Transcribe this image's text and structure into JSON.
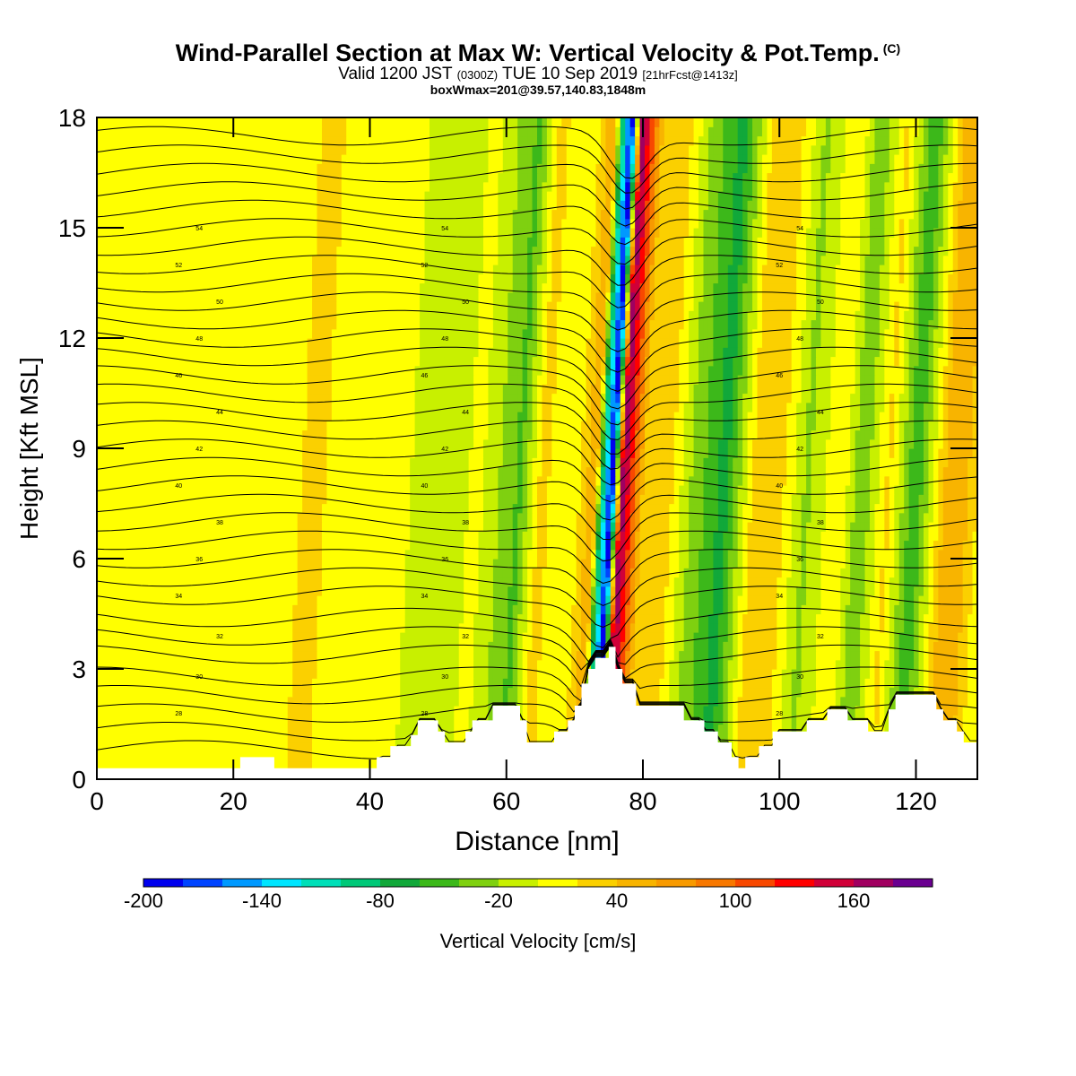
{
  "title": {
    "main": "Wind-Parallel Section at Max W: Vertical Velocity & Pot.Temp.",
    "copyright": "(C)",
    "valid_prefix": "Valid 1200 JST",
    "valid_utc": "(0300Z)",
    "valid_date": "TUE 10 Sep 2019",
    "forecast": "[21hrFcst@1413z]",
    "box_info": "boxWmax=201@39.57,140.83,1848m"
  },
  "chart_data": {
    "type": "heatmap",
    "xlabel": "Distance [nm]",
    "ylabel": "Height [Kft MSL]",
    "xlim": [
      0,
      129
    ],
    "ylim": [
      0,
      18
    ],
    "xticks": [
      0,
      20,
      40,
      60,
      80,
      100,
      120
    ],
    "yticks": [
      0,
      3,
      6,
      9,
      12,
      15,
      18
    ],
    "colorbar": {
      "label": "Vertical Velocity [cm/s]",
      "tick_labels": [
        "-200",
        "-140",
        "-80",
        "-20",
        "40",
        "100",
        "160"
      ],
      "tick_values": [
        -200,
        -140,
        -80,
        -20,
        40,
        100,
        160
      ],
      "levels": [
        -200,
        -180,
        -160,
        -140,
        -120,
        -100,
        -80,
        -60,
        -40,
        -20,
        0,
        20,
        40,
        60,
        80,
        100,
        120,
        140,
        160,
        180,
        200
      ],
      "colors": [
        "#0000ee",
        "#0044ff",
        "#0099ff",
        "#00e5ff",
        "#00dfb8",
        "#00c878",
        "#11a83a",
        "#3cb81a",
        "#7fd010",
        "#c8f000",
        "#ffff00",
        "#fbd000",
        "#f8b400",
        "#f89a00",
        "#f87800",
        "#f84800",
        "#ff0000",
        "#d00038",
        "#a00060",
        "#6a0090"
      ]
    },
    "velocity_field": {
      "background_cm_s": 10,
      "columns": [
        {
          "x": 0,
          "value": 15
        },
        {
          "x": 6,
          "value": 15
        },
        {
          "x": 14,
          "value": 5
        },
        {
          "x": 24,
          "value": 5
        },
        {
          "x": 32,
          "value": 25
        },
        {
          "x": 38,
          "value": 5
        },
        {
          "x": 46,
          "value": 0
        },
        {
          "x": 50,
          "value": -15
        },
        {
          "x": 56,
          "value": 5
        },
        {
          "x": 62,
          "value": -45
        },
        {
          "x": 65,
          "value": 25
        },
        {
          "x": 70,
          "value": 5
        },
        {
          "x": 73,
          "value": 60
        },
        {
          "x": 74,
          "value": -80
        },
        {
          "x": 75.5,
          "value": -200
        },
        {
          "x": 77,
          "value": 180
        },
        {
          "x": 80,
          "value": 40
        },
        {
          "x": 84,
          "value": 25
        },
        {
          "x": 87,
          "value": -20
        },
        {
          "x": 92,
          "value": -70
        },
        {
          "x": 96,
          "value": 20
        },
        {
          "x": 100,
          "value": 30
        },
        {
          "x": 104,
          "value": -25
        },
        {
          "x": 109,
          "value": 20
        },
        {
          "x": 112,
          "value": -40
        },
        {
          "x": 116,
          "value": 25
        },
        {
          "x": 120,
          "value": -60
        },
        {
          "x": 125,
          "value": 60
        },
        {
          "x": 129,
          "value": 30
        }
      ],
      "plume_axis_tilt_nm_per_kft": 0.3,
      "plume_axis_base_x": 75
    },
    "theta_contours": {
      "levels_kft_at_x0": [
        0.8,
        1.3,
        1.8,
        2.3,
        2.8,
        3.4,
        3.9,
        4.4,
        5.0,
        5.5,
        6.0,
        6.5,
        7.0,
        7.5,
        8.0,
        8.5,
        9.0,
        9.5,
        10.0,
        10.5,
        11.0,
        11.5,
        12.0,
        12.5,
        13.0,
        13.5,
        14.0,
        14.5,
        15.0,
        15.5,
        16.0,
        16.5,
        17.0,
        17.5
      ],
      "labels": [
        "28",
        "30",
        "32",
        "34",
        "36",
        "38",
        "40",
        "42",
        "44",
        "46",
        "48",
        "50",
        "52",
        "54"
      ]
    },
    "terrain_kft": [
      {
        "x": 0,
        "h": 0.3
      },
      {
        "x": 20,
        "h": 0.3
      },
      {
        "x": 21,
        "h": 0.6
      },
      {
        "x": 25,
        "h": 0.6
      },
      {
        "x": 26,
        "h": 0.3
      },
      {
        "x": 40,
        "h": 0.3
      },
      {
        "x": 41,
        "h": 0.6
      },
      {
        "x": 43,
        "h": 0.9
      },
      {
        "x": 46,
        "h": 1.2
      },
      {
        "x": 47,
        "h": 1.6
      },
      {
        "x": 49,
        "h": 1.6
      },
      {
        "x": 50,
        "h": 1.3
      },
      {
        "x": 51,
        "h": 1.0
      },
      {
        "x": 54,
        "h": 1.3
      },
      {
        "x": 55,
        "h": 1.6
      },
      {
        "x": 58,
        "h": 2.0
      },
      {
        "x": 61,
        "h": 2.0
      },
      {
        "x": 62,
        "h": 1.6
      },
      {
        "x": 63,
        "h": 1.0
      },
      {
        "x": 66,
        "h": 1.0
      },
      {
        "x": 67,
        "h": 1.3
      },
      {
        "x": 69,
        "h": 1.6
      },
      {
        "x": 70,
        "h": 2.0
      },
      {
        "x": 71,
        "h": 2.6
      },
      {
        "x": 72,
        "h": 3.0
      },
      {
        "x": 73,
        "h": 3.3
      },
      {
        "x": 75,
        "h": 3.6
      },
      {
        "x": 76,
        "h": 3.0
      },
      {
        "x": 77,
        "h": 2.6
      },
      {
        "x": 79,
        "h": 2.0
      },
      {
        "x": 84,
        "h": 2.0
      },
      {
        "x": 86,
        "h": 1.6
      },
      {
        "x": 89,
        "h": 1.3
      },
      {
        "x": 91,
        "h": 1.0
      },
      {
        "x": 93,
        "h": 0.6
      },
      {
        "x": 94,
        "h": 0.3
      },
      {
        "x": 95,
        "h": 0.6
      },
      {
        "x": 97,
        "h": 0.9
      },
      {
        "x": 99,
        "h": 1.3
      },
      {
        "x": 104,
        "h": 1.6
      },
      {
        "x": 107,
        "h": 1.9
      },
      {
        "x": 110,
        "h": 1.6
      },
      {
        "x": 113,
        "h": 1.3
      },
      {
        "x": 116,
        "h": 1.9
      },
      {
        "x": 117,
        "h": 2.3
      },
      {
        "x": 121,
        "h": 2.3
      },
      {
        "x": 123,
        "h": 1.9
      },
      {
        "x": 124,
        "h": 1.6
      },
      {
        "x": 126,
        "h": 1.3
      },
      {
        "x": 127,
        "h": 1.0
      },
      {
        "x": 129,
        "h": 0.9
      }
    ]
  }
}
